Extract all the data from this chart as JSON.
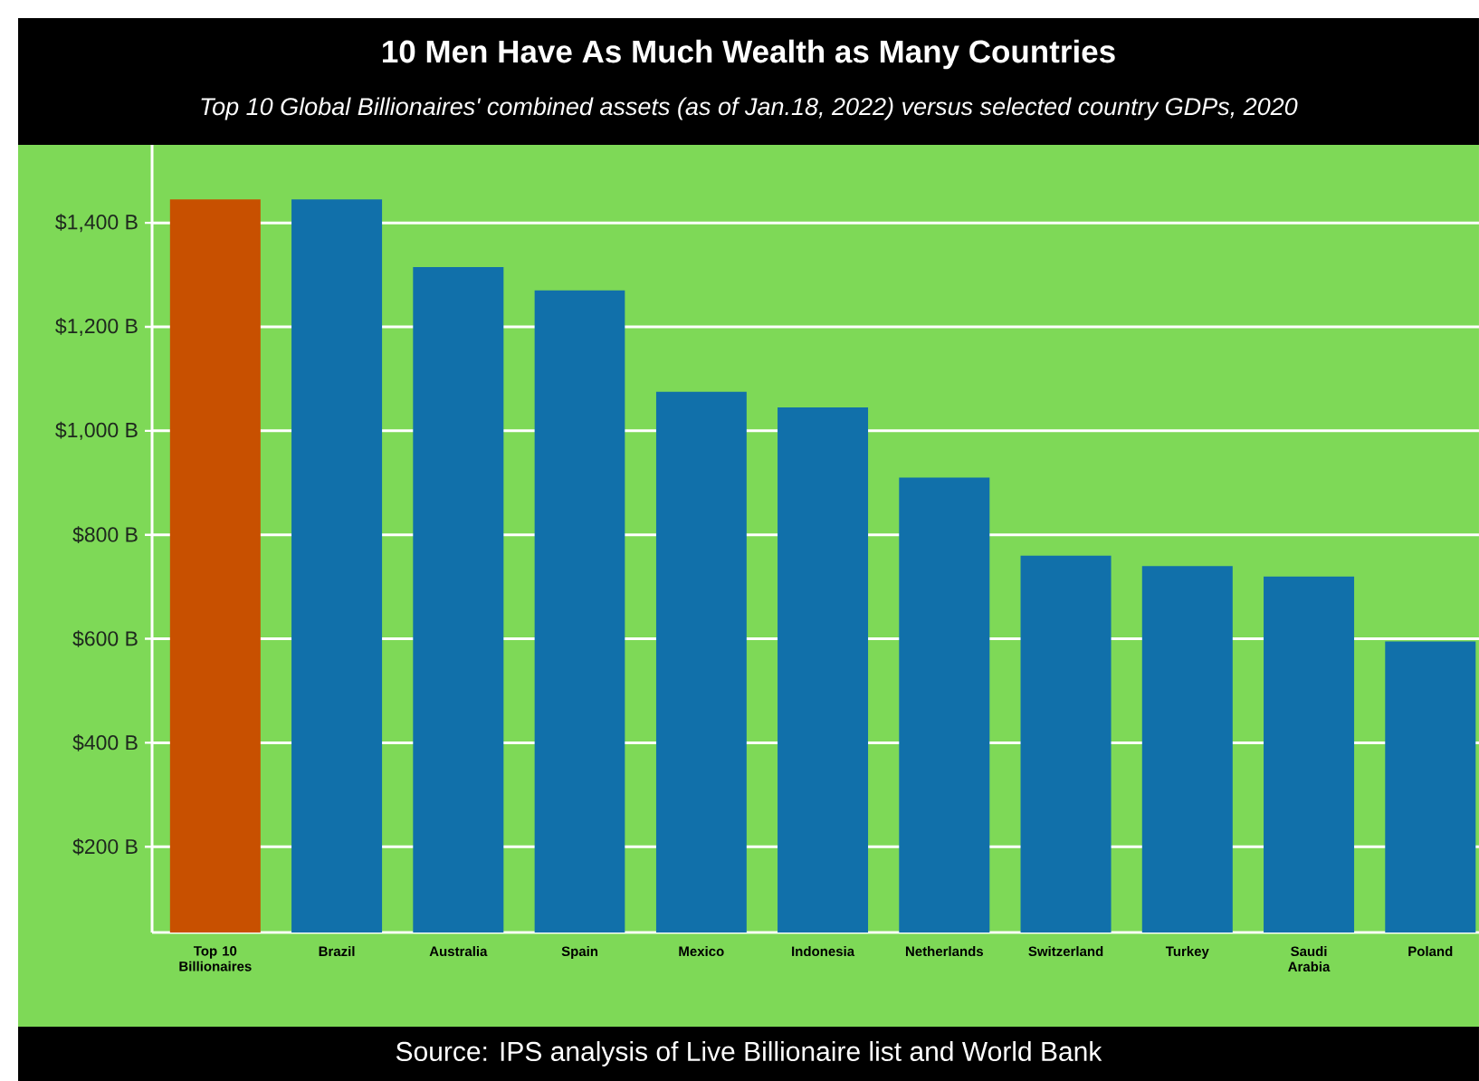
{
  "chart_data": {
    "type": "bar",
    "title": "10 Men Have As Much Wealth as Many Countries",
    "subtitle": "Top 10 Global Billionaires' combined assets (as of Jan.18, 2022) versus selected country GDPs, 2020",
    "categories": [
      "Top 10 Billionaires",
      "Brazil",
      "Australia",
      "Spain",
      "Mexico",
      "Indonesia",
      "Netherlands",
      "Switzerland",
      "Turkey",
      "Saudi Arabia",
      "Poland"
    ],
    "values": [
      1445,
      1445,
      1315,
      1270,
      1075,
      1045,
      910,
      760,
      740,
      720,
      595
    ],
    "colors": [
      "#c85000",
      "#1170aa",
      "#1170aa",
      "#1170aa",
      "#1170aa",
      "#1170aa",
      "#1170aa",
      "#1170aa",
      "#1170aa",
      "#1170aa",
      "#1170aa"
    ],
    "ylim": [
      35,
      1550
    ],
    "yticks": [
      {
        "value": 200,
        "label": "$200 B"
      },
      {
        "value": 400,
        "label": "$400 B"
      },
      {
        "value": 600,
        "label": "$600 B"
      },
      {
        "value": 800,
        "label": "$800 B"
      },
      {
        "value": 1000,
        "label": "$1,000 B"
      },
      {
        "value": 1200,
        "label": "$1,200 B"
      },
      {
        "value": 1400,
        "label": "$1,400 B"
      }
    ],
    "grid": "y",
    "annotations": [
      "Source: IPS analysis of Live Billionaire list and World Bank"
    ]
  }
}
